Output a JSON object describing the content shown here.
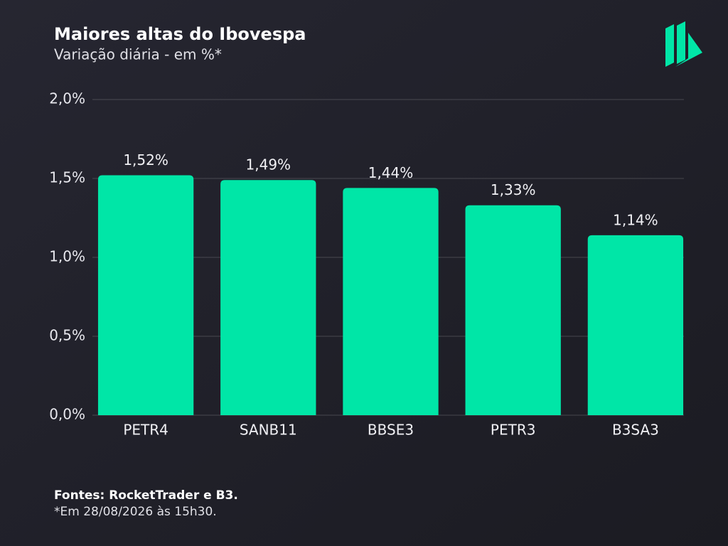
{
  "chart_data": {
    "type": "bar",
    "title": "Maiores altas do Ibovespa",
    "subtitle": "Variação diária - em %*",
    "categories": [
      "PETR4",
      "SANB11",
      "BBSE3",
      "PETR3",
      "B3SA3"
    ],
    "values": [
      1.52,
      1.49,
      1.44,
      1.33,
      1.14
    ],
    "value_labels": [
      "1,52%",
      "1,49%",
      "1,44%",
      "1,33%",
      "1,14%"
    ],
    "color": "#00e6a7",
    "ylim": [
      0,
      2
    ],
    "yticks": [
      {
        "value": 0,
        "label": "0,0%"
      },
      {
        "value": 0.5,
        "label": "0,5%"
      },
      {
        "value": 1,
        "label": "1,0%"
      },
      {
        "value": 1.5,
        "label": "1,5%"
      },
      {
        "value": 2,
        "label": "2,0%"
      }
    ],
    "grid": true,
    "source": "Fontes: RocketTrader e B3.",
    "note": "*Em 28/08/2026 às 15h30."
  }
}
